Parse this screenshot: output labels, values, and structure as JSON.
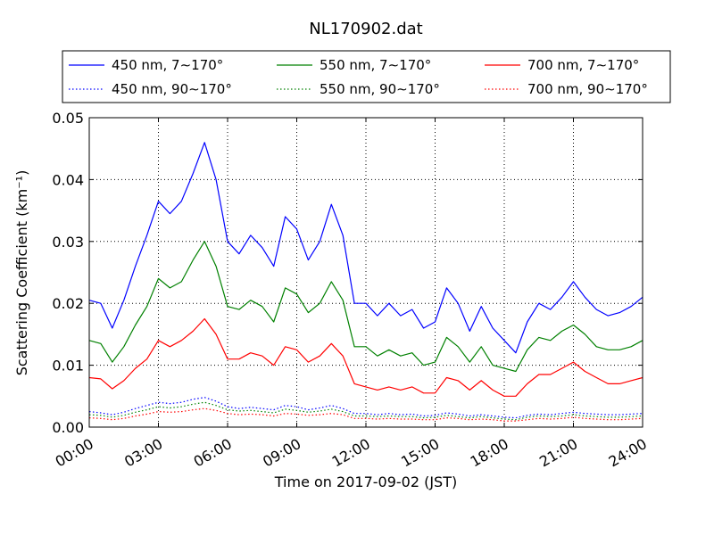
{
  "chart_data": {
    "type": "line",
    "title": "NL170902.dat",
    "xlabel": "Time on 2017-09-02 (JST)",
    "ylabel": "Scattering Coefficient (km⁻¹)",
    "xlim_hours": [
      0,
      24
    ],
    "ylim": [
      0,
      0.05
    ],
    "grid": true,
    "legend_position": "top",
    "x_ticks": [
      "00:00",
      "03:00",
      "06:00",
      "09:00",
      "12:00",
      "15:00",
      "18:00",
      "21:00",
      "24:00"
    ],
    "y_ticks": [
      "0.00",
      "0.01",
      "0.02",
      "0.03",
      "0.04",
      "0.05"
    ],
    "x_hours": [
      0,
      0.5,
      1,
      1.5,
      2,
      2.5,
      3,
      3.5,
      4,
      4.5,
      5,
      5.5,
      6,
      6.5,
      7,
      7.5,
      8,
      8.5,
      9,
      9.5,
      10,
      10.5,
      11,
      11.5,
      12,
      12.5,
      13,
      13.5,
      14,
      14.5,
      15,
      15.5,
      16,
      16.5,
      17,
      17.5,
      18,
      18.5,
      19,
      19.5,
      20,
      20.5,
      21,
      21.5,
      22,
      22.5,
      23,
      23.5,
      24
    ],
    "series": [
      {
        "name": "450 nm, 7∼170°",
        "color": "#0000ff",
        "style": "solid",
        "values": [
          0.0205,
          0.02,
          0.016,
          0.0205,
          0.026,
          0.031,
          0.0365,
          0.0345,
          0.0365,
          0.041,
          0.046,
          0.04,
          0.03,
          0.028,
          0.031,
          0.029,
          0.026,
          0.034,
          0.032,
          0.027,
          0.03,
          0.036,
          0.031,
          0.02,
          0.02,
          0.018,
          0.02,
          0.018,
          0.019,
          0.016,
          0.017,
          0.0225,
          0.02,
          0.0155,
          0.0195,
          0.016,
          0.014,
          0.012,
          0.017,
          0.02,
          0.019,
          0.021,
          0.0235,
          0.021,
          0.019,
          0.018,
          0.0185,
          0.0195,
          0.021
        ]
      },
      {
        "name": "450 nm, 90∼170°",
        "color": "#0000ff",
        "style": "dotted",
        "values": [
          0.0025,
          0.0023,
          0.002,
          0.0024,
          0.003,
          0.0035,
          0.004,
          0.0038,
          0.004,
          0.0045,
          0.0048,
          0.0042,
          0.0033,
          0.003,
          0.0032,
          0.003,
          0.0028,
          0.0035,
          0.0033,
          0.0028,
          0.0031,
          0.0035,
          0.003,
          0.0022,
          0.0022,
          0.002,
          0.0022,
          0.002,
          0.0021,
          0.0018,
          0.0019,
          0.0023,
          0.0021,
          0.0018,
          0.002,
          0.0018,
          0.0016,
          0.0015,
          0.0019,
          0.0021,
          0.002,
          0.0022,
          0.0024,
          0.0022,
          0.0021,
          0.002,
          0.002,
          0.0021,
          0.0022
        ]
      },
      {
        "name": "550 nm, 7∼170°",
        "color": "#008000",
        "style": "solid",
        "values": [
          0.014,
          0.0135,
          0.0105,
          0.013,
          0.0165,
          0.0195,
          0.024,
          0.0225,
          0.0235,
          0.027,
          0.03,
          0.026,
          0.0195,
          0.019,
          0.0205,
          0.0195,
          0.017,
          0.0225,
          0.0215,
          0.0185,
          0.02,
          0.0235,
          0.0205,
          0.013,
          0.013,
          0.0115,
          0.0125,
          0.0115,
          0.012,
          0.01,
          0.0105,
          0.0145,
          0.013,
          0.0105,
          0.013,
          0.01,
          0.0095,
          0.009,
          0.0125,
          0.0145,
          0.014,
          0.0155,
          0.0165,
          0.015,
          0.013,
          0.0125,
          0.0125,
          0.013,
          0.014
        ]
      },
      {
        "name": "550 nm, 90∼170°",
        "color": "#008000",
        "style": "dotted",
        "values": [
          0.002,
          0.0019,
          0.0016,
          0.0019,
          0.0024,
          0.0028,
          0.0033,
          0.0031,
          0.0033,
          0.0037,
          0.004,
          0.0035,
          0.0028,
          0.0026,
          0.0027,
          0.0025,
          0.0023,
          0.0029,
          0.0027,
          0.0024,
          0.0026,
          0.0029,
          0.0025,
          0.0018,
          0.0018,
          0.0017,
          0.0018,
          0.0017,
          0.0017,
          0.0015,
          0.0016,
          0.0019,
          0.0017,
          0.0015,
          0.0017,
          0.0015,
          0.0013,
          0.0012,
          0.0016,
          0.0018,
          0.0017,
          0.0018,
          0.002,
          0.0018,
          0.0017,
          0.0016,
          0.0016,
          0.0017,
          0.0018
        ]
      },
      {
        "name": "700 nm, 7∼170°",
        "color": "#ff0000",
        "style": "solid",
        "values": [
          0.008,
          0.0078,
          0.0062,
          0.0075,
          0.0095,
          0.011,
          0.014,
          0.013,
          0.014,
          0.0155,
          0.0175,
          0.015,
          0.011,
          0.011,
          0.012,
          0.0115,
          0.01,
          0.013,
          0.0125,
          0.0105,
          0.0115,
          0.0135,
          0.0115,
          0.007,
          0.0065,
          0.006,
          0.0065,
          0.006,
          0.0065,
          0.0055,
          0.0055,
          0.008,
          0.0075,
          0.006,
          0.0075,
          0.006,
          0.005,
          0.005,
          0.007,
          0.0085,
          0.0085,
          0.0095,
          0.0105,
          0.009,
          0.008,
          0.007,
          0.007,
          0.0075,
          0.008
        ]
      },
      {
        "name": "700 nm, 90∼170°",
        "color": "#ff0000",
        "style": "dotted",
        "values": [
          0.0015,
          0.0014,
          0.0012,
          0.0014,
          0.0018,
          0.0021,
          0.0025,
          0.0024,
          0.0025,
          0.0028,
          0.003,
          0.0027,
          0.0022,
          0.002,
          0.0021,
          0.002,
          0.0018,
          0.0022,
          0.0021,
          0.0019,
          0.002,
          0.0022,
          0.002,
          0.0014,
          0.0014,
          0.0013,
          0.0014,
          0.0013,
          0.0013,
          0.0012,
          0.0012,
          0.0015,
          0.0014,
          0.0012,
          0.0013,
          0.0012,
          0.001,
          0.001,
          0.0012,
          0.0014,
          0.0013,
          0.0014,
          0.0016,
          0.0014,
          0.0013,
          0.0012,
          0.0012,
          0.0013,
          0.0014
        ]
      }
    ]
  }
}
